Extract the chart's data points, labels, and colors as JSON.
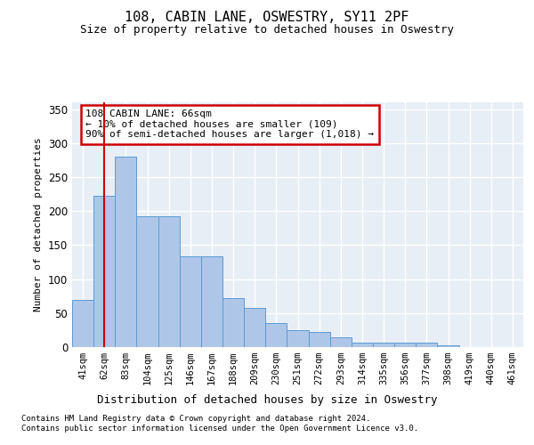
{
  "title": "108, CABIN LANE, OSWESTRY, SY11 2PF",
  "subtitle": "Size of property relative to detached houses in Oswestry",
  "xlabel": "Distribution of detached houses by size in Oswestry",
  "ylabel": "Number of detached properties",
  "categories": [
    "41sqm",
    "62sqm",
    "83sqm",
    "104sqm",
    "125sqm",
    "146sqm",
    "167sqm",
    "188sqm",
    "209sqm",
    "230sqm",
    "251sqm",
    "272sqm",
    "293sqm",
    "314sqm",
    "335sqm",
    "356sqm",
    "377sqm",
    "398sqm",
    "419sqm",
    "440sqm",
    "461sqm"
  ],
  "values": [
    70,
    222,
    280,
    193,
    193,
    133,
    133,
    72,
    58,
    35,
    25,
    22,
    14,
    6,
    6,
    6,
    6,
    3,
    0,
    0,
    0
  ],
  "bar_color": "#aec6e8",
  "bar_edge_color": "#5b9bd5",
  "background_color": "#e8eef5",
  "grid_color": "#ffffff",
  "vline_x": 1.0,
  "vline_color": "#cc0000",
  "annotation_text": "108 CABIN LANE: 66sqm\n← 10% of detached houses are smaller (109)\n90% of semi-detached houses are larger (1,018) →",
  "annotation_box_color": "#ffffff",
  "annotation_box_edge_color": "#cc0000",
  "ylim": [
    0,
    360
  ],
  "yticks": [
    0,
    50,
    100,
    150,
    200,
    250,
    300,
    350
  ],
  "footer_line1": "Contains HM Land Registry data © Crown copyright and database right 2024.",
  "footer_line2": "Contains public sector information licensed under the Open Government Licence v3.0."
}
